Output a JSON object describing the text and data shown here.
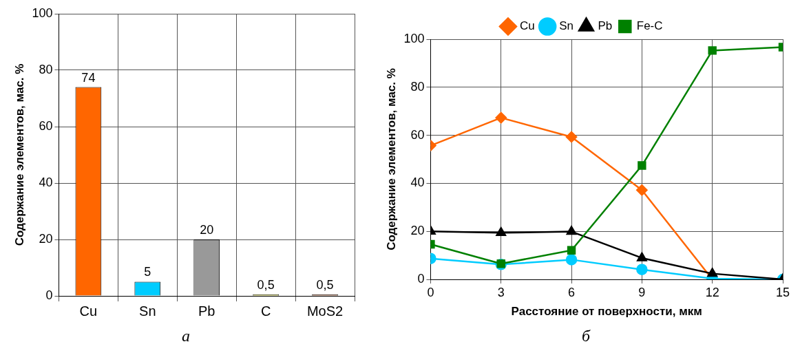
{
  "chart_data": [
    {
      "type": "bar",
      "ylabel": "Содержание элементов, мас. %",
      "categories": [
        "Cu",
        "Sn",
        "Pb",
        "C",
        "MoS2"
      ],
      "values": [
        74,
        5,
        20,
        0.5,
        0.5
      ],
      "colors": [
        "#ff6600",
        "#00ccff",
        "#999999",
        "#cccc00",
        "#993300"
      ],
      "value_labels": [
        "74",
        "5",
        "20",
        "0,5",
        "0,5"
      ],
      "ylim": [
        0,
        100
      ],
      "yticks": [
        0,
        20,
        40,
        60,
        80,
        100
      ],
      "grid": true,
      "legend": false,
      "annotations": [
        "а"
      ]
    },
    {
      "type": "line",
      "xlabel": "Расстояние от поверхности, мкм",
      "ylabel": "Содержание элементов, мас. %",
      "x": [
        0,
        3,
        6,
        9,
        12,
        15
      ],
      "xlim": [
        0,
        15
      ],
      "xticks": [
        0,
        3,
        6,
        9,
        12,
        15
      ],
      "ylim": [
        0,
        100
      ],
      "yticks": [
        0,
        20,
        40,
        60,
        80,
        100
      ],
      "grid": true,
      "legend": "top",
      "line_style": "solid",
      "annotations": [
        "б"
      ],
      "series": [
        {
          "name": "Cu",
          "color": "#ff6600",
          "marker": "diamond",
          "values": [
            55.7,
            67.3,
            59.3,
            37.2,
            0,
            null
          ]
        },
        {
          "name": "Sn",
          "color": "#00ccff",
          "marker": "circle",
          "values": [
            8.7,
            6.2,
            8.2,
            4.1,
            0.3,
            0
          ]
        },
        {
          "name": "Pb",
          "color": "#000000",
          "marker": "triangle",
          "values": [
            20,
            19.4,
            19.9,
            8.9,
            2.4,
            0
          ]
        },
        {
          "name": "Fe-C",
          "color": "#008000",
          "marker": "square",
          "values": [
            14.6,
            6.5,
            12.1,
            47.4,
            95.3,
            96.7
          ]
        }
      ]
    }
  ]
}
